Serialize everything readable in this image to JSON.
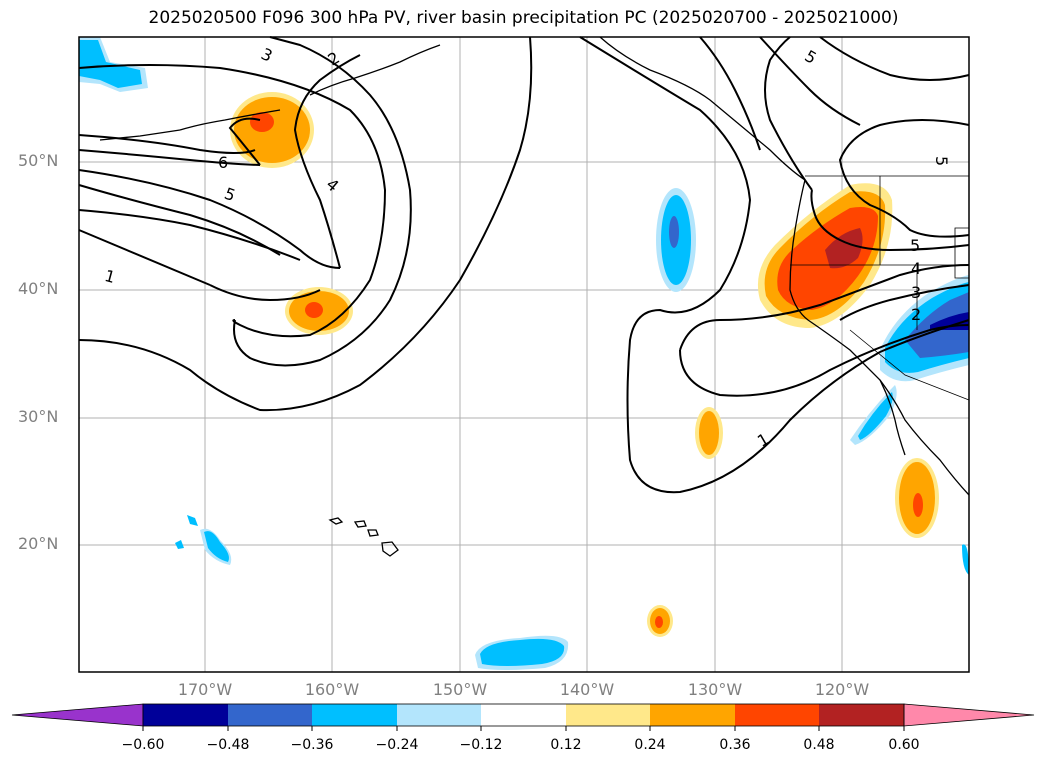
{
  "title": "2025020500 F096 300 hPa PV, river basin precipitation PC (2025020700 - 2025021000)",
  "lat_labels": [
    "50°N",
    "40°N",
    "30°N",
    "20°N"
  ],
  "lon_labels": [
    "170°W",
    "160°W",
    "150°W",
    "140°W",
    "130°W",
    "120°W"
  ],
  "contour_labels": [
    "3",
    "2",
    "6",
    "5",
    "4",
    "1",
    "5",
    "5",
    "5",
    "4",
    "3",
    "2",
    "1"
  ],
  "colorbar": {
    "ticks": [
      "−0.60",
      "−0.48",
      "−0.36",
      "−0.24",
      "−0.12",
      "0.12",
      "0.24",
      "0.36",
      "0.48",
      "0.60"
    ],
    "colors": [
      "#9933cc",
      "#000099",
      "#3366cc",
      "#00bfff",
      "#b3e5fc",
      "#ffffff",
      "#ffe88a",
      "#ffa500",
      "#ff4500",
      "#b22222",
      "#ff88aa"
    ]
  }
}
